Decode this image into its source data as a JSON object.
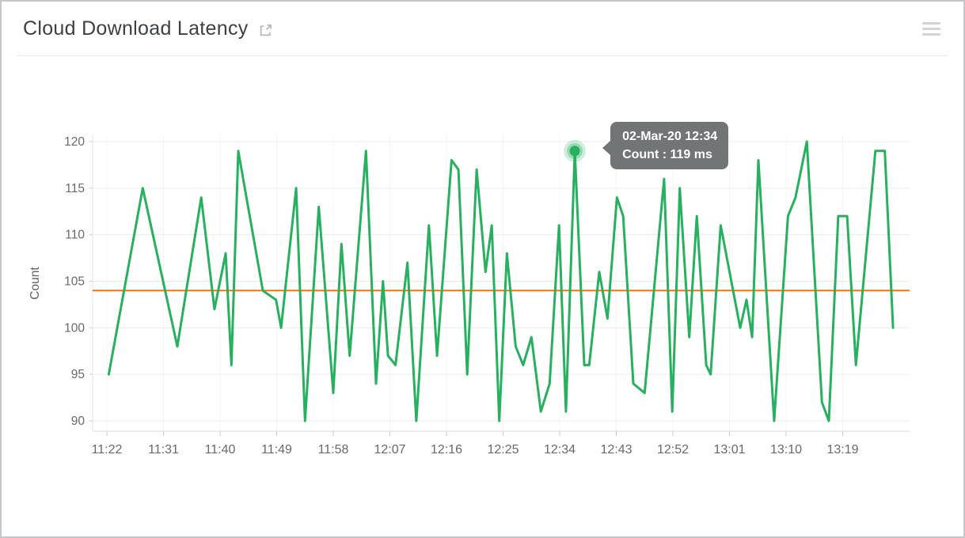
{
  "header": {
    "title": "Cloud Download Latency"
  },
  "tooltip": {
    "line1": "02-Mar-20 12:34",
    "line2": "Count : 119 ms"
  },
  "colors": {
    "line_green": "#27b05e",
    "threshold_orange": "#ed7612",
    "tooltip_bg": "#6c7172",
    "grid_line": "#ececec",
    "axis_text": "#67696b",
    "title_text": "#3c4043",
    "icon_gray": "#d2d4d4",
    "page_border": "#c5c7c8"
  },
  "chart_data": {
    "type": "line",
    "title": "Cloud Download Latency",
    "ylabel": "Count",
    "x_unit": "time (HH:MM), 02-Mar-20",
    "x_tick_labels": [
      "11:22",
      "11:31",
      "11:40",
      "11:49",
      "11:58",
      "12:07",
      "12:16",
      "12:25",
      "12:34",
      "12:43",
      "12:52",
      "13:01",
      "13:10",
      "13:19"
    ],
    "x_tick_interval_minutes": 9,
    "y_ticks": [
      90,
      95,
      100,
      105,
      110,
      115,
      120
    ],
    "ylim": [
      88,
      122
    ],
    "xlim_minutes": [
      -2.3,
      127.7
    ],
    "grid": "horizontal-light",
    "legend": "none",
    "threshold": {
      "value": 104,
      "color": "#ed7612"
    },
    "series": [
      {
        "name": "Count",
        "unit": "ms",
        "color": "#27b05e",
        "points": [
          [
            0.3,
            95
          ],
          [
            5.7,
            115
          ],
          [
            11.2,
            98
          ],
          [
            15.0,
            114
          ],
          [
            17.1,
            102
          ],
          [
            18.9,
            108
          ],
          [
            19.8,
            96
          ],
          [
            20.9,
            119
          ],
          [
            24.8,
            104
          ],
          [
            26.9,
            103
          ],
          [
            27.7,
            100
          ],
          [
            30.1,
            115
          ],
          [
            31.5,
            90
          ],
          [
            33.7,
            113
          ],
          [
            36.0,
            93
          ],
          [
            37.3,
            109
          ],
          [
            38.6,
            97
          ],
          [
            41.2,
            119
          ],
          [
            42.8,
            94
          ],
          [
            43.9,
            105
          ],
          [
            44.7,
            97
          ],
          [
            45.9,
            96
          ],
          [
            47.8,
            107
          ],
          [
            49.2,
            90
          ],
          [
            51.2,
            111
          ],
          [
            52.5,
            97
          ],
          [
            54.8,
            118
          ],
          [
            55.9,
            117
          ],
          [
            57.3,
            95
          ],
          [
            58.8,
            117
          ],
          [
            60.2,
            106
          ],
          [
            61.2,
            111
          ],
          [
            62.4,
            90
          ],
          [
            63.6,
            108
          ],
          [
            65.0,
            98
          ],
          [
            66.2,
            96
          ],
          [
            67.5,
            99
          ],
          [
            69.0,
            91
          ],
          [
            70.4,
            94
          ],
          [
            71.9,
            111
          ],
          [
            73.0,
            91
          ],
          [
            74.4,
            119
          ],
          [
            75.9,
            96
          ],
          [
            76.7,
            96
          ],
          [
            78.3,
            106
          ],
          [
            79.6,
            101
          ],
          [
            81.1,
            114
          ],
          [
            82.1,
            112
          ],
          [
            83.7,
            94
          ],
          [
            85.5,
            93
          ],
          [
            88.6,
            116
          ],
          [
            89.9,
            91
          ],
          [
            91.1,
            115
          ],
          [
            92.6,
            99
          ],
          [
            93.8,
            112
          ],
          [
            95.3,
            96
          ],
          [
            96.0,
            95
          ],
          [
            97.6,
            111
          ],
          [
            100.7,
            100
          ],
          [
            101.7,
            103
          ],
          [
            102.6,
            99
          ],
          [
            103.6,
            118
          ],
          [
            106.1,
            90
          ],
          [
            108.3,
            112
          ],
          [
            109.5,
            114
          ],
          [
            111.3,
            120
          ],
          [
            113.7,
            92
          ],
          [
            114.8,
            90
          ],
          [
            116.3,
            112
          ],
          [
            117.7,
            112
          ],
          [
            119.1,
            96
          ],
          [
            122.2,
            119
          ],
          [
            123.7,
            119
          ],
          [
            125.0,
            100
          ]
        ]
      }
    ],
    "highlight": {
      "index": 41,
      "label_date": "02-Mar-20 12:34",
      "value_ms": 119
    }
  }
}
